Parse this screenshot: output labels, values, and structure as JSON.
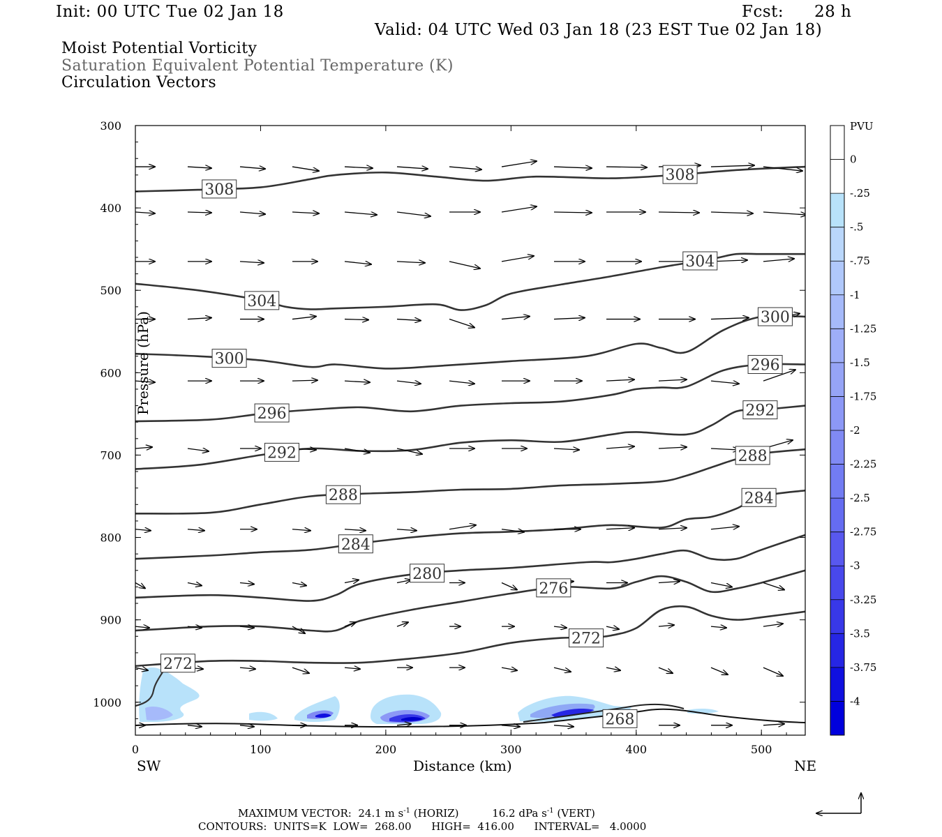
{
  "header": {
    "init": "Init: 00 UTC Tue 02 Jan 18",
    "fcst_label": "Fcst:",
    "fcst_value": "28 h",
    "valid": "Valid: 04 UTC Wed 03 Jan 18 (23 EST Tue 02 Jan 18)"
  },
  "titles": {
    "line1": "Moist Potential Vorticity",
    "line2": "Saturation Equivalent Potential Temperature (K)",
    "line3": "Circulation Vectors"
  },
  "colors": {
    "contour": "#333333",
    "shade_light": "#b8e2fa",
    "shade_mid": "#8fa8f5",
    "shade_dark": "#1010e0",
    "vector": "#000000"
  },
  "chart_data": {
    "type": "contour",
    "xlabel": "Distance (km)",
    "ylabel": "Pressure (hPa)",
    "xlim": [
      0,
      535
    ],
    "ylim": [
      300,
      1040
    ],
    "y_log": false,
    "x_ticks": [
      0,
      100,
      200,
      300,
      400,
      500
    ],
    "y_ticks": [
      300,
      400,
      500,
      600,
      700,
      800,
      900,
      1000
    ],
    "left_end_label": "SW",
    "right_end_label": "NE",
    "colorbar": {
      "title": "PVU",
      "ticks": [
        "0",
        "-.25",
        "-.5",
        "-.75",
        "-1",
        "-1.25",
        "-1.5",
        "-1.75",
        "-2",
        "-2.25",
        "-2.5",
        "-2.75",
        "-3",
        "-3.25",
        "-3.5",
        "-3.75",
        "-4"
      ],
      "colors": [
        "#ffffff",
        "#ffffff",
        "#b8e2fa",
        "#bad7fb",
        "#b0c8fb",
        "#a6bafa",
        "#9eaef8",
        "#96a4f6",
        "#8c98f6",
        "#808af4",
        "#727cf3",
        "#656cf1",
        "#5858ef",
        "#4848ec",
        "#3838e8",
        "#2626e4",
        "#1010e0",
        "#0000dd"
      ]
    },
    "theta_contours": [
      {
        "label": "308",
        "x": [
          0,
          50,
          100,
          140,
          160,
          200,
          240,
          280,
          320,
          380,
          430,
          480,
          520,
          535
        ],
        "p": [
          380,
          378,
          375,
          365,
          360,
          357,
          362,
          367,
          362,
          364,
          360,
          354,
          351,
          350
        ],
        "labels_at": [
          67,
          435
        ]
      },
      {
        "label": "304",
        "x": [
          0,
          50,
          100,
          120,
          140,
          160,
          200,
          240,
          260,
          280,
          300,
          340,
          380,
          420,
          460,
          480,
          500,
          535
        ],
        "p": [
          492,
          500,
          512,
          520,
          523,
          522,
          520,
          517,
          524,
          518,
          504,
          493,
          483,
          472,
          462,
          456,
          456,
          456
        ],
        "labels_at": [
          101,
          451
        ]
      },
      {
        "label": "300",
        "x": [
          0,
          50,
          100,
          140,
          160,
          200,
          240,
          300,
          360,
          400,
          420,
          440,
          470,
          500,
          535
        ],
        "p": [
          577,
          580,
          585,
          593,
          590,
          595,
          592,
          586,
          580,
          565,
          570,
          575,
          548,
          532,
          532
        ],
        "labels_at": [
          75,
          511
        ]
      },
      {
        "label": "296",
        "x": [
          0,
          60,
          100,
          140,
          180,
          220,
          260,
          300,
          340,
          380,
          400,
          420,
          440,
          470,
          500,
          535
        ],
        "p": [
          659,
          657,
          650,
          645,
          642,
          647,
          640,
          637,
          635,
          627,
          620,
          618,
          617,
          597,
          590,
          590
        ],
        "labels_at": [
          109,
          503
        ]
      },
      {
        "label": "292",
        "x": [
          0,
          50,
          100,
          140,
          180,
          220,
          260,
          300,
          340,
          380,
          400,
          440,
          460,
          480,
          500,
          535
        ],
        "p": [
          717,
          712,
          700,
          692,
          695,
          694,
          685,
          682,
          684,
          675,
          672,
          675,
          664,
          647,
          645,
          640
        ],
        "labels_at": [
          117,
          499
        ]
      },
      {
        "label": "288",
        "x": [
          0,
          60,
          100,
          140,
          180,
          220,
          260,
          300,
          340,
          380,
          420,
          440,
          460,
          480,
          500,
          535
        ],
        "p": [
          771,
          770,
          760,
          750,
          747,
          745,
          742,
          741,
          737,
          735,
          732,
          725,
          715,
          705,
          698,
          693
        ],
        "labels_at": [
          166,
          493
        ]
      },
      {
        "label": "284",
        "x": [
          0,
          60,
          100,
          140,
          180,
          220,
          260,
          300,
          340,
          380,
          420,
          440,
          460,
          480,
          500,
          535
        ],
        "p": [
          826,
          822,
          818,
          815,
          807,
          800,
          795,
          793,
          790,
          785,
          788,
          778,
          775,
          765,
          750,
          743
        ],
        "labels_at": [
          176,
          498
        ]
      },
      {
        "label": "280",
        "x": [
          0,
          60,
          100,
          140,
          160,
          180,
          220,
          260,
          300,
          360,
          380,
          400,
          420,
          440,
          460,
          480,
          500,
          535
        ],
        "p": [
          873,
          870,
          873,
          877,
          870,
          856,
          845,
          840,
          837,
          830,
          830,
          826,
          820,
          816,
          826,
          826,
          815,
          797
        ],
        "labels_at": [
          233
        ]
      },
      {
        "label": "276",
        "x": [
          0,
          60,
          100,
          140,
          160,
          180,
          220,
          260,
          300,
          340,
          380,
          400,
          420,
          440,
          460,
          480,
          500,
          535
        ],
        "p": [
          913,
          908,
          908,
          913,
          913,
          901,
          888,
          878,
          868,
          860,
          862,
          854,
          847,
          854,
          866,
          862,
          855,
          840
        ],
        "labels_at": [
          334
        ]
      },
      {
        "label": "272",
        "x": [
          0,
          60,
          100,
          140,
          180,
          220,
          260,
          300,
          340,
          360,
          380,
          400,
          420,
          440,
          460,
          480,
          500,
          535
        ],
        "p": [
          956,
          950,
          950,
          952,
          952,
          947,
          940,
          928,
          922,
          922,
          919,
          910,
          888,
          884,
          895,
          900,
          897,
          890
        ],
        "labels_at": [
          34,
          360
        ]
      }
    ],
    "low_contour_268": {
      "label": "268",
      "labels_at": [
        387
      ]
    },
    "vector_rows_hpa": [
      350,
      405,
      465,
      535,
      610,
      692,
      790,
      855,
      908,
      958,
      1028
    ],
    "vector_max_horiz": "24.1 m s",
    "vector_max_vert": "16.2 dPa s"
  },
  "footer": {
    "max_label": "MAXIMUM VECTOR:",
    "horiz": "24.1 m s",
    "horiz_unit": "(HORIZ)",
    "vert": "16.2 dPa s",
    "vert_unit": "(VERT)",
    "exp": "-1",
    "contours_label": "CONTOURS:",
    "units": "UNITS=K",
    "low": "LOW=",
    "low_value": "268.00",
    "high": "HIGH=",
    "high_value": "416.00",
    "interval": "INTERVAL=",
    "interval_value": "4.0000"
  }
}
